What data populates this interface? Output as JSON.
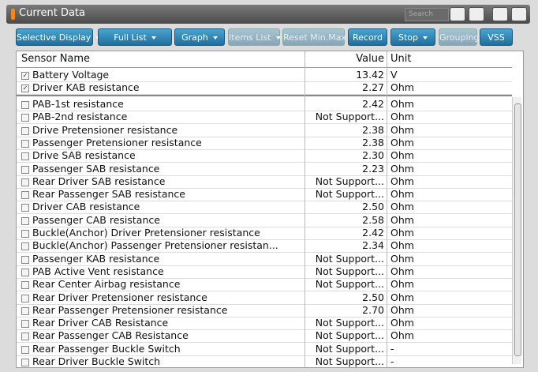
{
  "window": {
    "title": "Current Data",
    "search_placeholder": "Search"
  },
  "toolbar": {
    "buttons": [
      {
        "label": "Selective Display",
        "dropdown": true,
        "enabled": true
      },
      {
        "label": "Full List",
        "dropdown": true,
        "enabled": true
      },
      {
        "label": "Graph",
        "dropdown": true,
        "enabled": true
      },
      {
        "label": "Items List",
        "dropdown": true,
        "enabled": false
      },
      {
        "label": "Reset Min.Max",
        "dropdown": false,
        "enabled": false
      },
      {
        "label": "Record",
        "dropdown": false,
        "enabled": true
      },
      {
        "label": "Stop",
        "dropdown": true,
        "enabled": true
      },
      {
        "label": "Grouping",
        "dropdown": false,
        "enabled": false
      },
      {
        "label": "VSS",
        "dropdown": false,
        "enabled": true
      }
    ]
  },
  "table": {
    "header": [
      "Sensor Name",
      "Value",
      "Unit"
    ],
    "pinned_rows": [
      {
        "checked": true,
        "cells": [
          "Battery Voltage",
          "13.42",
          "V"
        ]
      },
      {
        "checked": true,
        "cells": [
          "Driver KAB resistance",
          "2.27",
          "Ohm"
        ]
      }
    ],
    "rows": [
      {
        "checked": false,
        "cells": [
          "PAB-1st resistance",
          "2.42",
          "Ohm"
        ]
      },
      {
        "checked": false,
        "cells": [
          "PAB-2nd resistance",
          "Not Support...",
          "Ohm"
        ]
      },
      {
        "checked": false,
        "cells": [
          "Drive Pretensioner resistance",
          "2.38",
          "Ohm"
        ]
      },
      {
        "checked": false,
        "cells": [
          "Passenger Pretensioner resistance",
          "2.38",
          "Ohm"
        ]
      },
      {
        "checked": false,
        "cells": [
          "Drive SAB resistance",
          "2.30",
          "Ohm"
        ]
      },
      {
        "checked": false,
        "cells": [
          "Passenger SAB resistance",
          "2.23",
          "Ohm"
        ]
      },
      {
        "checked": false,
        "cells": [
          "Rear Driver SAB resistance",
          "Not Support...",
          "Ohm"
        ]
      },
      {
        "checked": false,
        "cells": [
          "Rear Passenger SAB resistance",
          "Not Support...",
          "Ohm"
        ]
      },
      {
        "checked": false,
        "cells": [
          "Driver CAB resistance",
          "2.50",
          "Ohm"
        ]
      },
      {
        "checked": false,
        "cells": [
          "Passenger CAB resistance",
          "2.58",
          "Ohm"
        ]
      },
      {
        "checked": false,
        "cells": [
          "Buckle(Anchor) Driver Pretensioner resistance",
          "2.42",
          "Ohm"
        ]
      },
      {
        "checked": false,
        "cells": [
          "Buckle(Anchor) Passenger Pretensioner resistan...",
          "2.34",
          "Ohm"
        ]
      },
      {
        "checked": false,
        "cells": [
          "Passenger KAB resistance",
          "Not Support...",
          "Ohm"
        ]
      },
      {
        "checked": false,
        "cells": [
          "PAB Active Vent resistance",
          "Not Support...",
          "Ohm"
        ]
      },
      {
        "checked": false,
        "cells": [
          "Rear Center Airbag resistance",
          "Not Support...",
          "Ohm"
        ]
      },
      {
        "checked": false,
        "cells": [
          "Rear Driver Pretensioner resistance",
          "2.50",
          "Ohm"
        ]
      },
      {
        "checked": false,
        "cells": [
          "Rear Passenger Pretensioner resistance",
          "2.70",
          "Ohm"
        ]
      },
      {
        "checked": false,
        "cells": [
          "Rear Driver CAB Resistance",
          "Not Support...",
          "Ohm"
        ]
      },
      {
        "checked": false,
        "cells": [
          "Rear Passenger CAB Resistance",
          "Not Support...",
          "Ohm"
        ]
      },
      {
        "checked": false,
        "cells": [
          "Rear Passenger Buckle Switch",
          "Not Support...",
          "-"
        ]
      },
      {
        "checked": false,
        "cells": [
          "Rear Driver Buckle Switch",
          "Not Support...",
          "-"
        ]
      }
    ]
  }
}
